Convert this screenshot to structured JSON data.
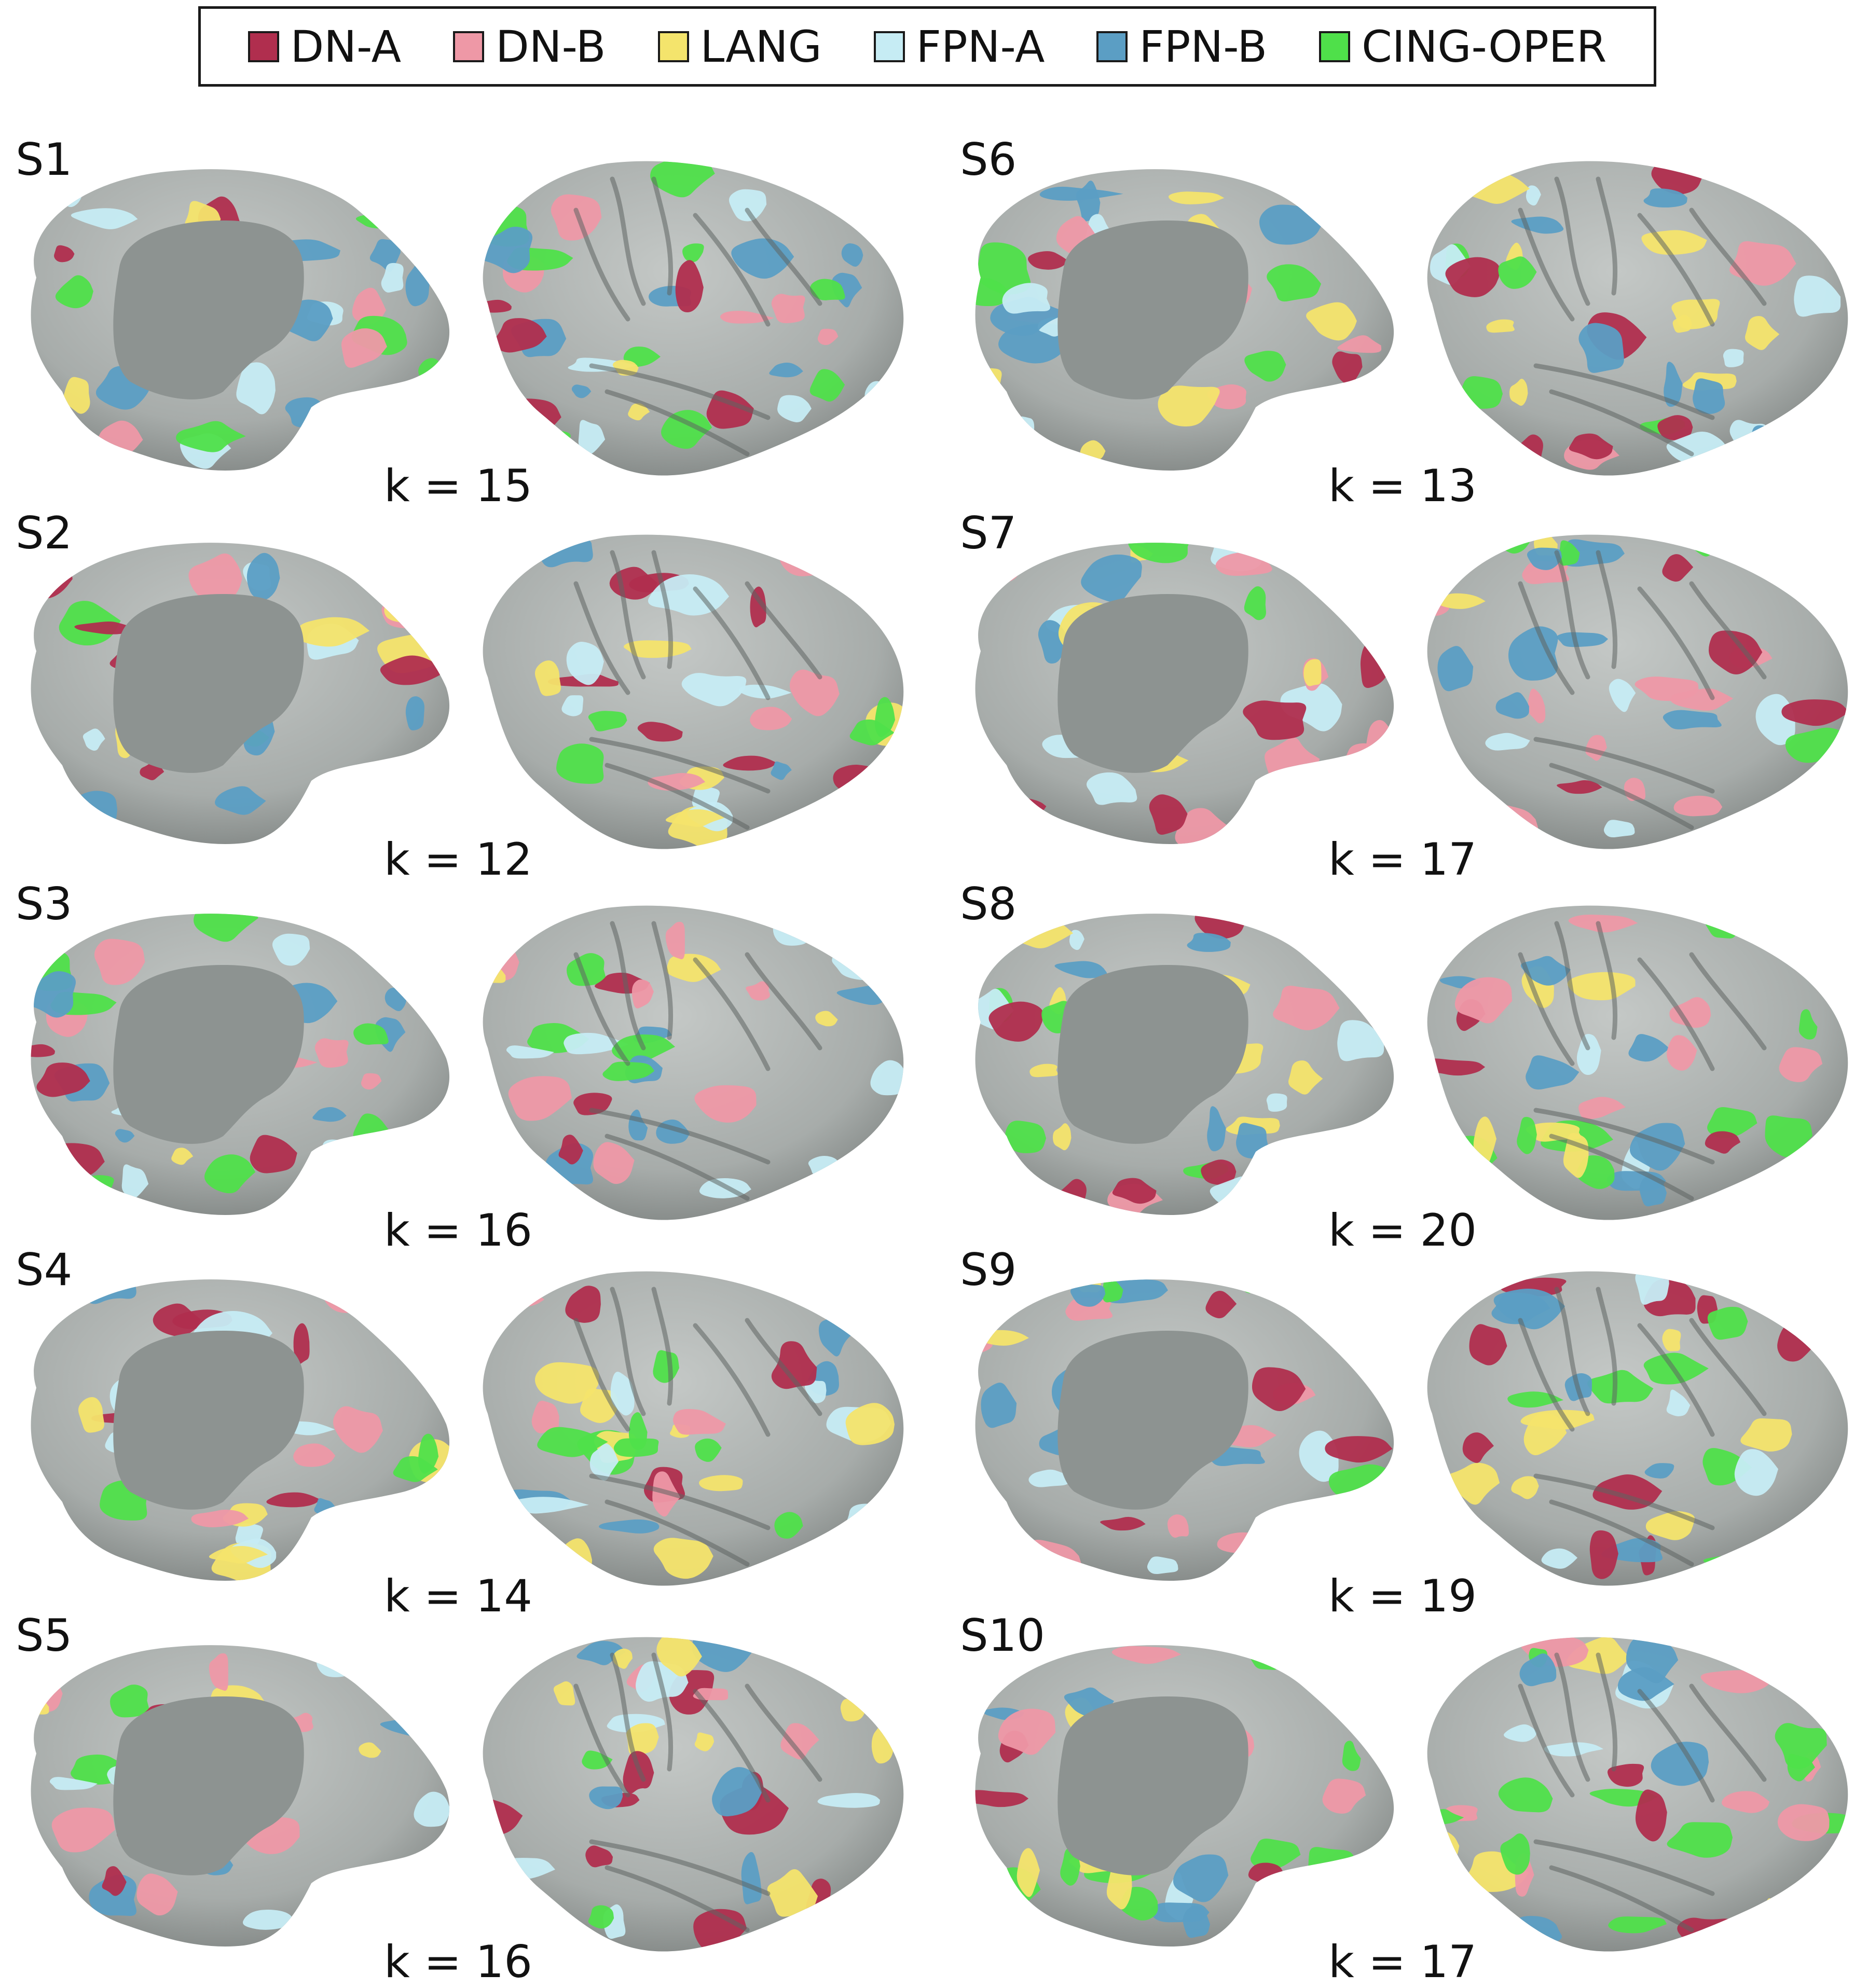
{
  "legend": [
    {
      "label": "DN-A",
      "color": "#b02e4e"
    },
    {
      "label": "DN-B",
      "color": "#ee98a6"
    },
    {
      "label": "LANG",
      "color": "#f4e46c"
    },
    {
      "label": "FPN-A",
      "color": "#c6ecf4"
    },
    {
      "label": "FPN-B",
      "color": "#5b9ec4"
    },
    {
      "label": "CING-OPER",
      "color": "#4fe04a"
    }
  ],
  "surface_color": "#a7acaa",
  "panels": [
    {
      "subject": "S1",
      "k": "k = 15"
    },
    {
      "subject": "S6",
      "k": "k = 13"
    },
    {
      "subject": "S2",
      "k": "k = 12"
    },
    {
      "subject": "S7",
      "k": "k = 17"
    },
    {
      "subject": "S3",
      "k": "k = 16"
    },
    {
      "subject": "S8",
      "k": "k = 20"
    },
    {
      "subject": "S4",
      "k": "k = 14"
    },
    {
      "subject": "S9",
      "k": "k = 19"
    },
    {
      "subject": "S5",
      "k": "k = 16"
    },
    {
      "subject": "S10",
      "k": "k = 17"
    }
  ]
}
